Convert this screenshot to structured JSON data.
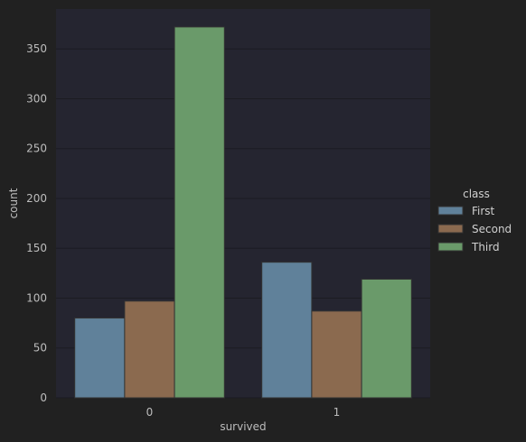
{
  "chart_data": {
    "type": "bar",
    "x": [
      "0",
      "1"
    ],
    "categories": [
      "0",
      "1"
    ],
    "series": [
      {
        "name": "First",
        "values": [
          80,
          136
        ],
        "color": "#60819a"
      },
      {
        "name": "Second",
        "values": [
          97,
          87
        ],
        "color": "#8b6a4f"
      },
      {
        "name": "Third",
        "values": [
          372,
          119
        ],
        "color": "#6a9a6a"
      }
    ],
    "xlabel": "survived",
    "ylabel": "count",
    "ylim": [
      0,
      390
    ],
    "yticks": [
      0,
      50,
      100,
      150,
      200,
      250,
      300,
      350
    ],
    "legend": {
      "title": "class",
      "position": "right"
    },
    "grid": true,
    "colors": {
      "figure_bg": "#212121",
      "plot_bg": "#252530",
      "grid": "#1c1c22",
      "bar_edge": "#333333"
    }
  }
}
